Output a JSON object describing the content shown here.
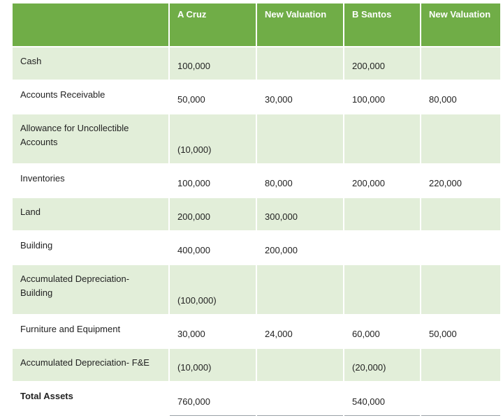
{
  "headers": [
    "",
    "A Cruz",
    "New Valuation",
    "B Santos",
    "New Valuation"
  ],
  "rows": [
    {
      "label": "Cash",
      "cruz": "100,000",
      "cruz_new": "",
      "santos": "200,000",
      "santos_new": ""
    },
    {
      "label": "Accounts Receivable",
      "cruz": "50,000",
      "cruz_new": "30,000",
      "santos": "100,000",
      "santos_new": "80,000"
    },
    {
      "label": "Allowance for Uncollectible Accounts",
      "cruz": "(10,000)",
      "cruz_new": "",
      "santos": "",
      "santos_new": ""
    },
    {
      "label": "Inventories",
      "cruz": "100,000",
      "cruz_new": "80,000",
      "santos": "200,000",
      "santos_new": "220,000"
    },
    {
      "label": "Land",
      "cruz": "200,000",
      "cruz_new": "300,000",
      "santos": "",
      "santos_new": ""
    },
    {
      "label": "Building",
      "cruz": "400,000",
      "cruz_new": "200,000",
      "santos": "",
      "santos_new": ""
    },
    {
      "label": "Accumulated Depreciation-Building",
      "cruz": "(100,000)",
      "cruz_new": "",
      "santos": "",
      "santos_new": ""
    },
    {
      "label": "Furniture and Equipment",
      "cruz": "30,000",
      "cruz_new": "24,000",
      "santos": "60,000",
      "santos_new": "50,000"
    },
    {
      "label": "Accumulated Depreciation- F&E",
      "cruz": "(10,000)",
      "cruz_new": "",
      "santos": "(20,000)",
      "santos_new": ""
    }
  ],
  "total": {
    "label": "Total Assets",
    "cruz": "760,000",
    "cruz_new": "",
    "santos": "540,000",
    "santos_new": ""
  },
  "colors": {
    "header": "#70ad47",
    "band": "#e2eed9"
  }
}
